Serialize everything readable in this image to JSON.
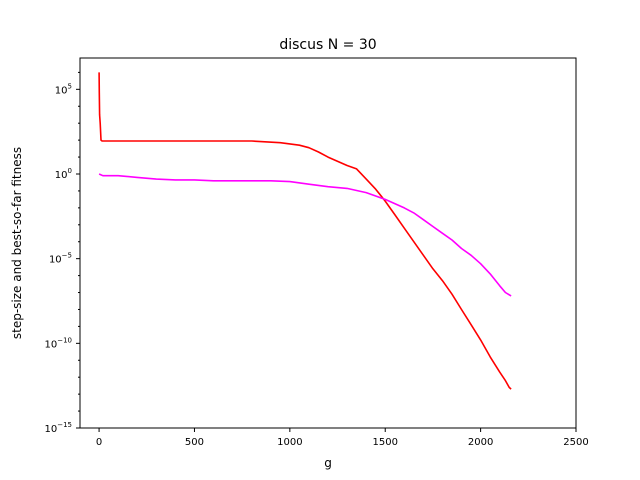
{
  "chart_data": {
    "type": "line",
    "title": "discus N = 30",
    "xlabel": "g",
    "ylabel": "step-size and best-so-far fitness",
    "xlim": [
      -100,
      2500
    ],
    "ylim_log10": [
      -15,
      6.85
    ],
    "yscale": "log",
    "grid": false,
    "x_ticks": [
      0,
      500,
      1000,
      1500,
      2000,
      2500
    ],
    "x_tick_labels": [
      "0",
      "500",
      "1000",
      "1500",
      "2000",
      "2500"
    ],
    "y_ticks_log10": [
      5,
      0,
      -5,
      -10,
      -15
    ],
    "y_tick_labels": [
      {
        "base": "10",
        "exp": "5"
      },
      {
        "base": "10",
        "exp": "0"
      },
      {
        "base": "10",
        "exp": "−5"
      },
      {
        "base": "10",
        "exp": "−10"
      },
      {
        "base": "10",
        "exp": "−15"
      }
    ],
    "series": [
      {
        "color": "#ff0000",
        "points_log10": [
          [
            0,
            6.0
          ],
          [
            1,
            4.8
          ],
          [
            3,
            3.5
          ],
          [
            6,
            3.0
          ],
          [
            10,
            2.0
          ],
          [
            16,
            1.95
          ],
          [
            100,
            1.95
          ],
          [
            400,
            1.95
          ],
          [
            800,
            1.95
          ],
          [
            950,
            1.85
          ],
          [
            1050,
            1.7
          ],
          [
            1100,
            1.55
          ],
          [
            1150,
            1.3
          ],
          [
            1200,
            1.0
          ],
          [
            1300,
            0.5
          ],
          [
            1350,
            0.3
          ],
          [
            1400,
            -0.3
          ],
          [
            1450,
            -0.9
          ],
          [
            1500,
            -1.6
          ],
          [
            1550,
            -2.4
          ],
          [
            1600,
            -3.2
          ],
          [
            1650,
            -4.0
          ],
          [
            1700,
            -4.8
          ],
          [
            1750,
            -5.6
          ],
          [
            1800,
            -6.3
          ],
          [
            1850,
            -7.1
          ],
          [
            1900,
            -8.0
          ],
          [
            1950,
            -8.9
          ],
          [
            2000,
            -9.8
          ],
          [
            2050,
            -10.8
          ],
          [
            2100,
            -11.7
          ],
          [
            2130,
            -12.2
          ],
          [
            2150,
            -12.6
          ],
          [
            2160,
            -12.7
          ]
        ]
      },
      {
        "color": "#ff00ff",
        "points_log10": [
          [
            0,
            0.0
          ],
          [
            20,
            -0.1
          ],
          [
            100,
            -0.1
          ],
          [
            200,
            -0.2
          ],
          [
            300,
            -0.3
          ],
          [
            400,
            -0.35
          ],
          [
            500,
            -0.35
          ],
          [
            600,
            -0.4
          ],
          [
            700,
            -0.4
          ],
          [
            800,
            -0.4
          ],
          [
            900,
            -0.4
          ],
          [
            1000,
            -0.45
          ],
          [
            1100,
            -0.6
          ],
          [
            1200,
            -0.75
          ],
          [
            1300,
            -0.85
          ],
          [
            1400,
            -1.1
          ],
          [
            1500,
            -1.5
          ],
          [
            1600,
            -2.0
          ],
          [
            1650,
            -2.3
          ],
          [
            1700,
            -2.7
          ],
          [
            1750,
            -3.1
          ],
          [
            1800,
            -3.5
          ],
          [
            1850,
            -3.9
          ],
          [
            1900,
            -4.4
          ],
          [
            1950,
            -4.8
          ],
          [
            2000,
            -5.3
          ],
          [
            2050,
            -5.9
          ],
          [
            2100,
            -6.6
          ],
          [
            2130,
            -7.0
          ],
          [
            2160,
            -7.2
          ]
        ]
      }
    ]
  }
}
